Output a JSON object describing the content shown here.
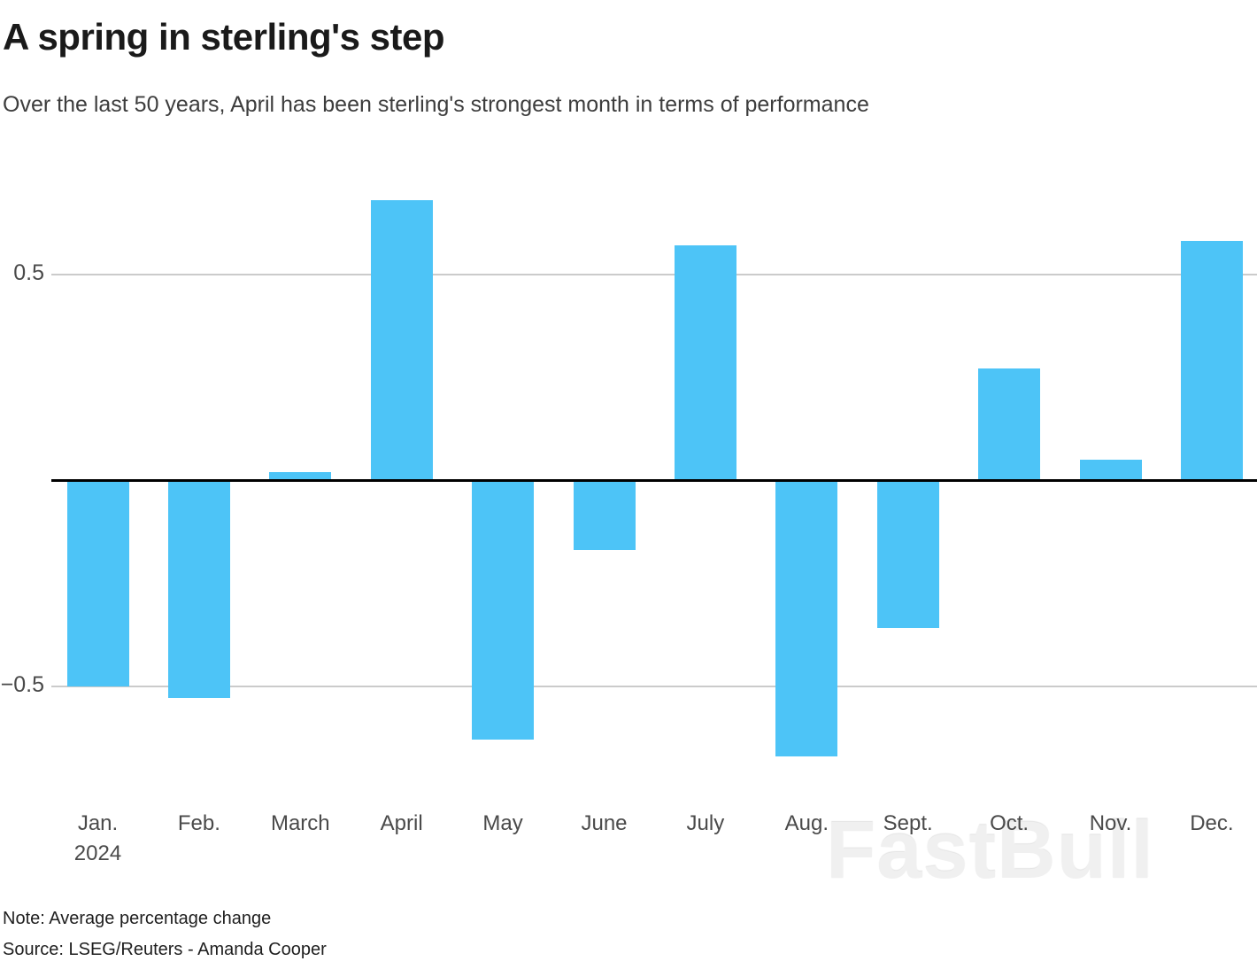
{
  "header": {
    "title": "A spring in sterling's step",
    "subtitle": "Over the last 50 years, April has been sterling's strongest month in terms of performance"
  },
  "chart_data": {
    "type": "bar",
    "title": "A spring in sterling's step",
    "subtitle": "Over the last 50 years, April has been sterling's strongest month in terms of performance",
    "categories": [
      "Jan.",
      "Feb.",
      "March",
      "April",
      "May",
      "June",
      "July",
      "Aug.",
      "Sept.",
      "Oct.",
      "Nov.",
      "Dec."
    ],
    "x_sublabels": [
      "2024",
      "",
      "",
      "",
      "",
      "",
      "",
      "",
      "",
      "",
      "",
      ""
    ],
    "values": [
      -0.5,
      -0.53,
      0.02,
      0.68,
      -0.63,
      -0.17,
      0.57,
      -0.67,
      -0.36,
      0.27,
      0.05,
      0.58
    ],
    "xlabel": "",
    "ylabel": "",
    "yticks": [
      0.5,
      -0.5
    ],
    "ylim": [
      -0.75,
      0.72
    ],
    "grid": "horizontal-light",
    "legend": "none",
    "bar_color": "#4dc4f7",
    "grid_color": "#cbcbcb",
    "zero_line_color": "#000000"
  },
  "footer": {
    "note": "Note: Average percentage change",
    "source": "Source: LSEG/Reuters - Amanda Cooper"
  },
  "watermark": "FastBull"
}
